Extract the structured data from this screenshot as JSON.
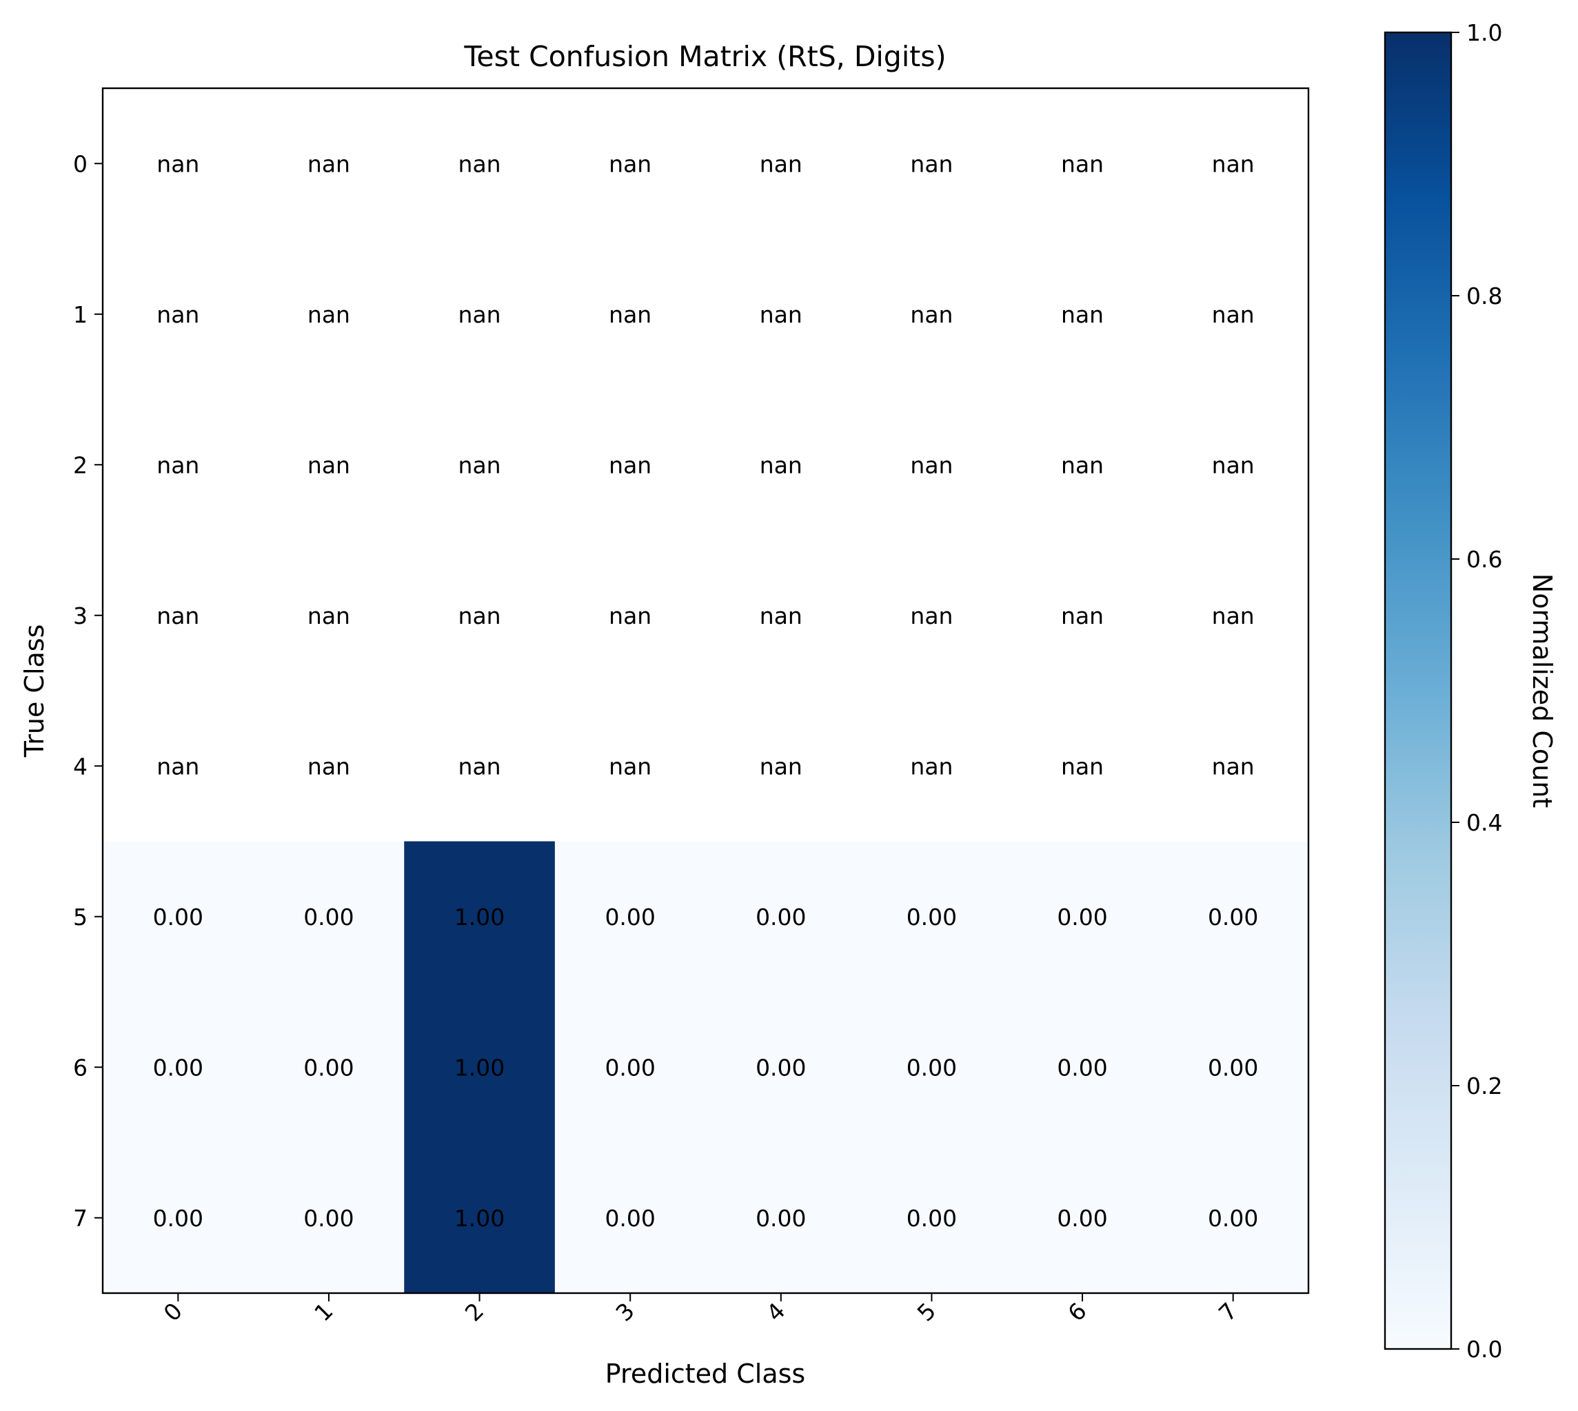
{
  "chart_data": {
    "type": "heatmap",
    "title": "Test Confusion Matrix (RtS, Digits)",
    "xlabel": "Predicted Class",
    "ylabel": "True Class",
    "x_categories": [
      "0",
      "1",
      "2",
      "3",
      "4",
      "5",
      "6",
      "7"
    ],
    "y_categories": [
      "0",
      "1",
      "2",
      "3",
      "4",
      "5",
      "6",
      "7"
    ],
    "values": [
      [
        null,
        null,
        null,
        null,
        null,
        null,
        null,
        null
      ],
      [
        null,
        null,
        null,
        null,
        null,
        null,
        null,
        null
      ],
      [
        null,
        null,
        null,
        null,
        null,
        null,
        null,
        null
      ],
      [
        null,
        null,
        null,
        null,
        null,
        null,
        null,
        null
      ],
      [
        null,
        null,
        null,
        null,
        null,
        null,
        null,
        null
      ],
      [
        0.0,
        0.0,
        1.0,
        0.0,
        0.0,
        0.0,
        0.0,
        0.0
      ],
      [
        0.0,
        0.0,
        1.0,
        0.0,
        0.0,
        0.0,
        0.0,
        0.0
      ],
      [
        0.0,
        0.0,
        1.0,
        0.0,
        0.0,
        0.0,
        0.0,
        0.0
      ]
    ],
    "cell_labels": [
      [
        "nan",
        "nan",
        "nan",
        "nan",
        "nan",
        "nan",
        "nan",
        "nan"
      ],
      [
        "nan",
        "nan",
        "nan",
        "nan",
        "nan",
        "nan",
        "nan",
        "nan"
      ],
      [
        "nan",
        "nan",
        "nan",
        "nan",
        "nan",
        "nan",
        "nan",
        "nan"
      ],
      [
        "nan",
        "nan",
        "nan",
        "nan",
        "nan",
        "nan",
        "nan",
        "nan"
      ],
      [
        "nan",
        "nan",
        "nan",
        "nan",
        "nan",
        "nan",
        "nan",
        "nan"
      ],
      [
        "0.00",
        "0.00",
        "1.00",
        "0.00",
        "0.00",
        "0.00",
        "0.00",
        "0.00"
      ],
      [
        "0.00",
        "0.00",
        "1.00",
        "0.00",
        "0.00",
        "0.00",
        "0.00",
        "0.00"
      ],
      [
        "0.00",
        "0.00",
        "1.00",
        "0.00",
        "0.00",
        "0.00",
        "0.00",
        "0.00"
      ]
    ],
    "colormap": "Blues",
    "color_low": "#f7fbff",
    "color_high": "#08306b",
    "colorbar": {
      "label": "Normalized Count",
      "range": [
        0.0,
        1.0
      ],
      "ticks": [
        "0.0",
        "0.2",
        "0.4",
        "0.6",
        "0.8",
        "1.0"
      ],
      "placement": "right"
    },
    "grid": false
  }
}
